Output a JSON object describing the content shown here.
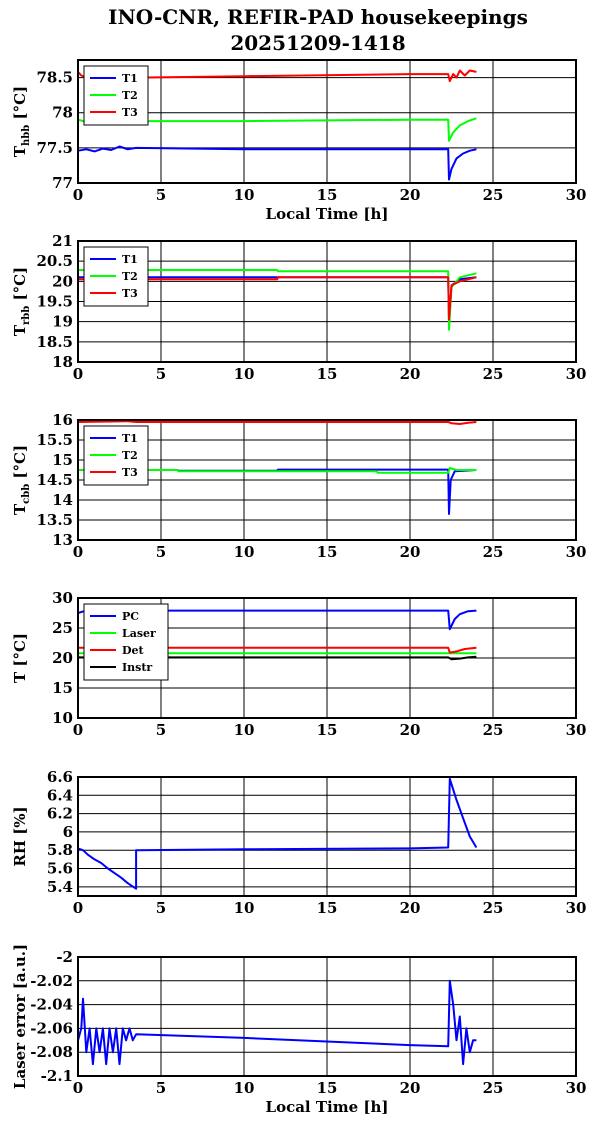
{
  "title_line1": "INO-CNR, REFIR-PAD housekeepings",
  "title_line2": "20251209-1418",
  "chart_data": [
    {
      "type": "line",
      "ylabel_main": "T",
      "ylabel_sub": "hbb",
      "ylabel_unit": "[°C]",
      "xlabel": "Local Time [h]",
      "xlim": [
        0,
        30
      ],
      "ylim": [
        77,
        78.75
      ],
      "yticks": [
        77,
        77.5,
        78,
        78.5
      ],
      "ytick_labels": [
        "77",
        "77.5",
        "78",
        "78.5"
      ],
      "xticks": [
        0,
        5,
        10,
        15,
        20,
        25,
        30
      ],
      "xtick_labels": [
        "0",
        "5",
        "10",
        "15",
        "20",
        "25",
        "30"
      ],
      "grid": true,
      "legend": "top-left",
      "series": [
        {
          "name": "T1",
          "color": "#0000ff",
          "points": [
            [
              0,
              77.46
            ],
            [
              0.5,
              77.48
            ],
            [
              1,
              77.45
            ],
            [
              1.5,
              77.49
            ],
            [
              2,
              77.47
            ],
            [
              2.5,
              77.52
            ],
            [
              3,
              77.48
            ],
            [
              3.5,
              77.5
            ],
            [
              10,
              77.48
            ],
            [
              20,
              77.48
            ],
            [
              22.3,
              77.48
            ],
            [
              22.35,
              77.05
            ],
            [
              22.5,
              77.2
            ],
            [
              22.8,
              77.35
            ],
            [
              23.2,
              77.42
            ],
            [
              23.6,
              77.46
            ],
            [
              24,
              77.48
            ]
          ]
        },
        {
          "name": "T2",
          "color": "#00ff00",
          "points": [
            [
              0,
              77.9
            ],
            [
              0.5,
              77.87
            ],
            [
              1,
              77.87
            ],
            [
              3.5,
              77.88
            ],
            [
              10,
              77.88
            ],
            [
              20,
              77.9
            ],
            [
              22.3,
              77.9
            ],
            [
              22.35,
              77.6
            ],
            [
              22.6,
              77.72
            ],
            [
              23,
              77.82
            ],
            [
              23.5,
              77.88
            ],
            [
              24,
              77.92
            ]
          ]
        },
        {
          "name": "T3",
          "color": "#ff0000",
          "points": [
            [
              0,
              78.58
            ],
            [
              0.2,
              78.53
            ],
            [
              0.5,
              78.5
            ],
            [
              3.5,
              78.5
            ],
            [
              10,
              78.52
            ],
            [
              20,
              78.55
            ],
            [
              22.3,
              78.55
            ],
            [
              22.4,
              78.45
            ],
            [
              22.6,
              78.55
            ],
            [
              22.8,
              78.5
            ],
            [
              23,
              78.6
            ],
            [
              23.3,
              78.53
            ],
            [
              23.6,
              78.6
            ],
            [
              24,
              78.58
            ]
          ]
        }
      ]
    },
    {
      "type": "line",
      "ylabel_main": "T",
      "ylabel_sub": "rbb",
      "ylabel_unit": "[°C]",
      "xlabel": "",
      "xlim": [
        0,
        30
      ],
      "ylim": [
        18,
        21
      ],
      "yticks": [
        18,
        18.5,
        19,
        19.5,
        20,
        20.5,
        21
      ],
      "ytick_labels": [
        "18",
        "18.5",
        "19",
        "19.5",
        "20",
        "20.5",
        "21"
      ],
      "xticks": [
        0,
        5,
        10,
        15,
        20,
        25,
        30
      ],
      "xtick_labels": [
        "0",
        "5",
        "10",
        "15",
        "20",
        "25",
        "30"
      ],
      "grid": true,
      "legend": "top-left",
      "series": [
        {
          "name": "T1",
          "color": "#0000ff",
          "points": [
            [
              0,
              20.1
            ],
            [
              10,
              20.1
            ],
            [
              20,
              20.1
            ],
            [
              22.3,
              20.1
            ],
            [
              22.35,
              19.0
            ],
            [
              22.5,
              19.9
            ],
            [
              23,
              20.05
            ],
            [
              24,
              20.1
            ]
          ]
        },
        {
          "name": "T2",
          "color": "#00ff00",
          "points": [
            [
              0,
              20.28
            ],
            [
              12,
              20.28
            ],
            [
              12.05,
              20.25
            ],
            [
              20,
              20.25
            ],
            [
              22.3,
              20.25
            ],
            [
              22.35,
              18.8
            ],
            [
              22.5,
              19.85
            ],
            [
              23,
              20.1
            ],
            [
              24,
              20.2
            ]
          ]
        },
        {
          "name": "T3",
          "color": "#ff0000",
          "points": [
            [
              0,
              20.05
            ],
            [
              12,
              20.05
            ],
            [
              12.05,
              20.1
            ],
            [
              22.3,
              20.1
            ],
            [
              22.35,
              19.05
            ],
            [
              22.5,
              19.9
            ],
            [
              23,
              20.0
            ],
            [
              24,
              20.1
            ]
          ]
        }
      ]
    },
    {
      "type": "line",
      "ylabel_main": "T",
      "ylabel_sub": "cbb",
      "ylabel_unit": "[°C]",
      "xlabel": "",
      "xlim": [
        0,
        30
      ],
      "ylim": [
        13,
        16
      ],
      "yticks": [
        13,
        13.5,
        14,
        14.5,
        15,
        15.5,
        16
      ],
      "ytick_labels": [
        "13",
        "13.5",
        "14",
        "14.5",
        "15",
        "15.5",
        "16"
      ],
      "xticks": [
        0,
        5,
        10,
        15,
        20,
        25,
        30
      ],
      "xtick_labels": [
        "0",
        "5",
        "10",
        "15",
        "20",
        "25",
        "30"
      ],
      "grid": true,
      "legend": "top-left",
      "series": [
        {
          "name": "T1",
          "color": "#0000ff",
          "points": [
            [
              0,
              14.75
            ],
            [
              6,
              14.75
            ],
            [
              6.05,
              14.73
            ],
            [
              12,
              14.73
            ],
            [
              12.05,
              14.76
            ],
            [
              22.3,
              14.76
            ],
            [
              22.35,
              13.65
            ],
            [
              22.45,
              14.5
            ],
            [
              22.7,
              14.72
            ],
            [
              24,
              14.75
            ]
          ]
        },
        {
          "name": "T2",
          "color": "#00ff00",
          "points": [
            [
              0,
              14.75
            ],
            [
              6,
              14.75
            ],
            [
              6.05,
              14.72
            ],
            [
              18,
              14.72
            ],
            [
              18.05,
              14.68
            ],
            [
              22.3,
              14.68
            ],
            [
              22.4,
              14.8
            ],
            [
              22.8,
              14.75
            ],
            [
              24,
              14.75
            ]
          ]
        },
        {
          "name": "T3",
          "color": "#ff0000",
          "points": [
            [
              0,
              15.95
            ],
            [
              3,
              15.97
            ],
            [
              3.5,
              15.95
            ],
            [
              22.3,
              15.95
            ],
            [
              22.5,
              15.92
            ],
            [
              23,
              15.9
            ],
            [
              23.5,
              15.93
            ],
            [
              24,
              15.95
            ]
          ]
        }
      ]
    },
    {
      "type": "line",
      "ylabel_main": "T [°C]",
      "ylabel_sub": "",
      "ylabel_unit": "",
      "xlabel": "",
      "xlim": [
        0,
        30
      ],
      "ylim": [
        10,
        30
      ],
      "yticks": [
        10,
        15,
        20,
        25,
        30
      ],
      "ytick_labels": [
        "10",
        "15",
        "20",
        "25",
        "30"
      ],
      "xticks": [
        0,
        5,
        10,
        15,
        20,
        25,
        30
      ],
      "xtick_labels": [
        "0",
        "5",
        "10",
        "15",
        "20",
        "25",
        "30"
      ],
      "grid": true,
      "legend": "top-left",
      "series": [
        {
          "name": "PC",
          "color": "#0000ff",
          "points": [
            [
              0,
              27.5
            ],
            [
              0.5,
              27.9
            ],
            [
              3.5,
              27.9
            ],
            [
              22.3,
              27.9
            ],
            [
              22.4,
              24.8
            ],
            [
              22.7,
              26.5
            ],
            [
              23,
              27.3
            ],
            [
              23.5,
              27.8
            ],
            [
              24,
              27.9
            ]
          ]
        },
        {
          "name": "Laser",
          "color": "#00ff00",
          "points": [
            [
              0,
              20.8
            ],
            [
              3.5,
              20.8
            ],
            [
              22.3,
              20.8
            ],
            [
              22.5,
              20.8
            ],
            [
              24,
              20.8
            ]
          ]
        },
        {
          "name": "Det",
          "color": "#ff0000",
          "points": [
            [
              0,
              21.7
            ],
            [
              3.5,
              21.7
            ],
            [
              22.3,
              21.7
            ],
            [
              22.4,
              20.9
            ],
            [
              22.8,
              21.1
            ],
            [
              23.3,
              21.5
            ],
            [
              24,
              21.7
            ]
          ]
        },
        {
          "name": "Instr",
          "color": "#000000",
          "points": [
            [
              0,
              20.1
            ],
            [
              3.5,
              20.1
            ],
            [
              22.3,
              20.1
            ],
            [
              22.5,
              19.8
            ],
            [
              23,
              19.9
            ],
            [
              23.5,
              20.1
            ],
            [
              24,
              20.2
            ]
          ]
        }
      ]
    },
    {
      "type": "line",
      "ylabel_main": "RH [%]",
      "ylabel_sub": "",
      "ylabel_unit": "",
      "xlabel": "",
      "xlim": [
        0,
        30
      ],
      "ylim": [
        5.3,
        6.6
      ],
      "yticks": [
        5.4,
        5.6,
        5.8,
        6,
        6.2,
        6.4,
        6.6
      ],
      "ytick_labels": [
        "5.4",
        "5.6",
        "5.8",
        "6",
        "6.2",
        "6.4",
        "6.6"
      ],
      "xticks": [
        0,
        5,
        10,
        15,
        20,
        25,
        30
      ],
      "xtick_labels": [
        "0",
        "5",
        "10",
        "15",
        "20",
        "25",
        "30"
      ],
      "grid": true,
      "legend": "none",
      "series": [
        {
          "name": "",
          "color": "#0000ff",
          "points": [
            [
              0,
              5.82
            ],
            [
              0.3,
              5.8
            ],
            [
              0.6,
              5.75
            ],
            [
              1,
              5.7
            ],
            [
              1.4,
              5.66
            ],
            [
              1.8,
              5.6
            ],
            [
              2.2,
              5.55
            ],
            [
              2.6,
              5.5
            ],
            [
              3,
              5.44
            ],
            [
              3.5,
              5.38
            ],
            [
              3.5,
              5.8
            ],
            [
              10,
              5.81
            ],
            [
              20,
              5.82
            ],
            [
              22.3,
              5.83
            ],
            [
              22.4,
              6.58
            ],
            [
              22.8,
              6.35
            ],
            [
              23.2,
              6.15
            ],
            [
              23.6,
              5.95
            ],
            [
              24,
              5.83
            ]
          ]
        }
      ]
    },
    {
      "type": "line",
      "ylabel_main": "Laser error [a.u.]",
      "ylabel_sub": "",
      "ylabel_unit": "",
      "xlabel": "Local Time [h]",
      "xlim": [
        0,
        30
      ],
      "ylim": [
        -2.1,
        -2.0
      ],
      "yticks": [
        -2.1,
        -2.08,
        -2.06,
        -2.04,
        -2.02,
        -2.0
      ],
      "ytick_labels": [
        "-2.1",
        "-2.08",
        "-2.06",
        "-2.04",
        "-2.02",
        "-2"
      ],
      "xticks": [
        0,
        5,
        10,
        15,
        20,
        25,
        30
      ],
      "xtick_labels": [
        "0",
        "5",
        "10",
        "15",
        "20",
        "25",
        "30"
      ],
      "grid": true,
      "legend": "none",
      "series": [
        {
          "name": "",
          "color": "#0000ff",
          "points": [
            [
              0,
              -2.07
            ],
            [
              0.2,
              -2.06
            ],
            [
              0.3,
              -2.035
            ],
            [
              0.5,
              -2.08
            ],
            [
              0.7,
              -2.06
            ],
            [
              0.9,
              -2.09
            ],
            [
              1.1,
              -2.06
            ],
            [
              1.3,
              -2.08
            ],
            [
              1.5,
              -2.06
            ],
            [
              1.7,
              -2.09
            ],
            [
              1.9,
              -2.06
            ],
            [
              2.1,
              -2.08
            ],
            [
              2.3,
              -2.06
            ],
            [
              2.5,
              -2.09
            ],
            [
              2.7,
              -2.06
            ],
            [
              2.9,
              -2.07
            ],
            [
              3.1,
              -2.06
            ],
            [
              3.3,
              -2.07
            ],
            [
              3.5,
              -2.065
            ],
            [
              10,
              -2.068
            ],
            [
              20,
              -2.074
            ],
            [
              22.3,
              -2.075
            ],
            [
              22.4,
              -2.02
            ],
            [
              22.6,
              -2.04
            ],
            [
              22.8,
              -2.07
            ],
            [
              23.0,
              -2.05
            ],
            [
              23.2,
              -2.09
            ],
            [
              23.4,
              -2.06
            ],
            [
              23.6,
              -2.08
            ],
            [
              23.8,
              -2.07
            ],
            [
              24,
              -2.07
            ]
          ]
        }
      ]
    }
  ]
}
